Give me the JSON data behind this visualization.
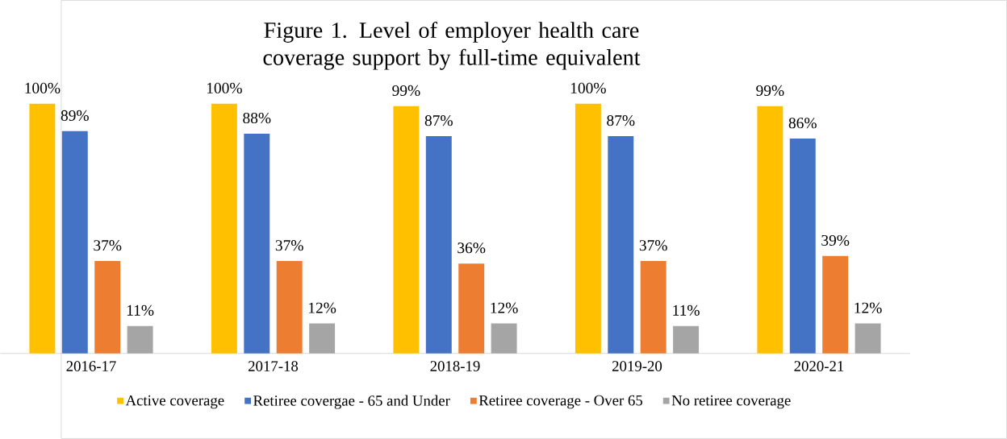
{
  "chart_data": {
    "type": "bar",
    "title": "Figure 1. Level of employer health care coverage support by full-time equivalent",
    "categories": [
      "2016-17",
      "2017-18",
      "2018-19",
      "2019-20",
      "2020-21"
    ],
    "series": [
      {
        "name": "Active coverage",
        "color": "#ffc000",
        "values": [
          100,
          100,
          99,
          100,
          99
        ],
        "value_labels": [
          "100%",
          "100%",
          "99%",
          "100%",
          "99%"
        ]
      },
      {
        "name": "Retiree covergae - 65 and Under",
        "color": "#4472c4",
        "values": [
          89,
          88,
          87,
          87,
          86
        ],
        "value_labels": [
          "89%",
          "88%",
          "87%",
          "87%",
          "86%"
        ]
      },
      {
        "name": "Retiree coverage - Over 65",
        "color": "#ed7d31",
        "values": [
          37,
          37,
          36,
          37,
          39
        ],
        "value_labels": [
          "37%",
          "37%",
          "36%",
          "37%",
          "39%"
        ]
      },
      {
        "name": "No retiree coverage",
        "color": "#a5a5a5",
        "values": [
          11,
          12,
          12,
          11,
          12
        ],
        "value_labels": [
          "11%",
          "12%",
          "12%",
          "11%",
          "12%"
        ]
      }
    ],
    "legend": "bottom"
  }
}
